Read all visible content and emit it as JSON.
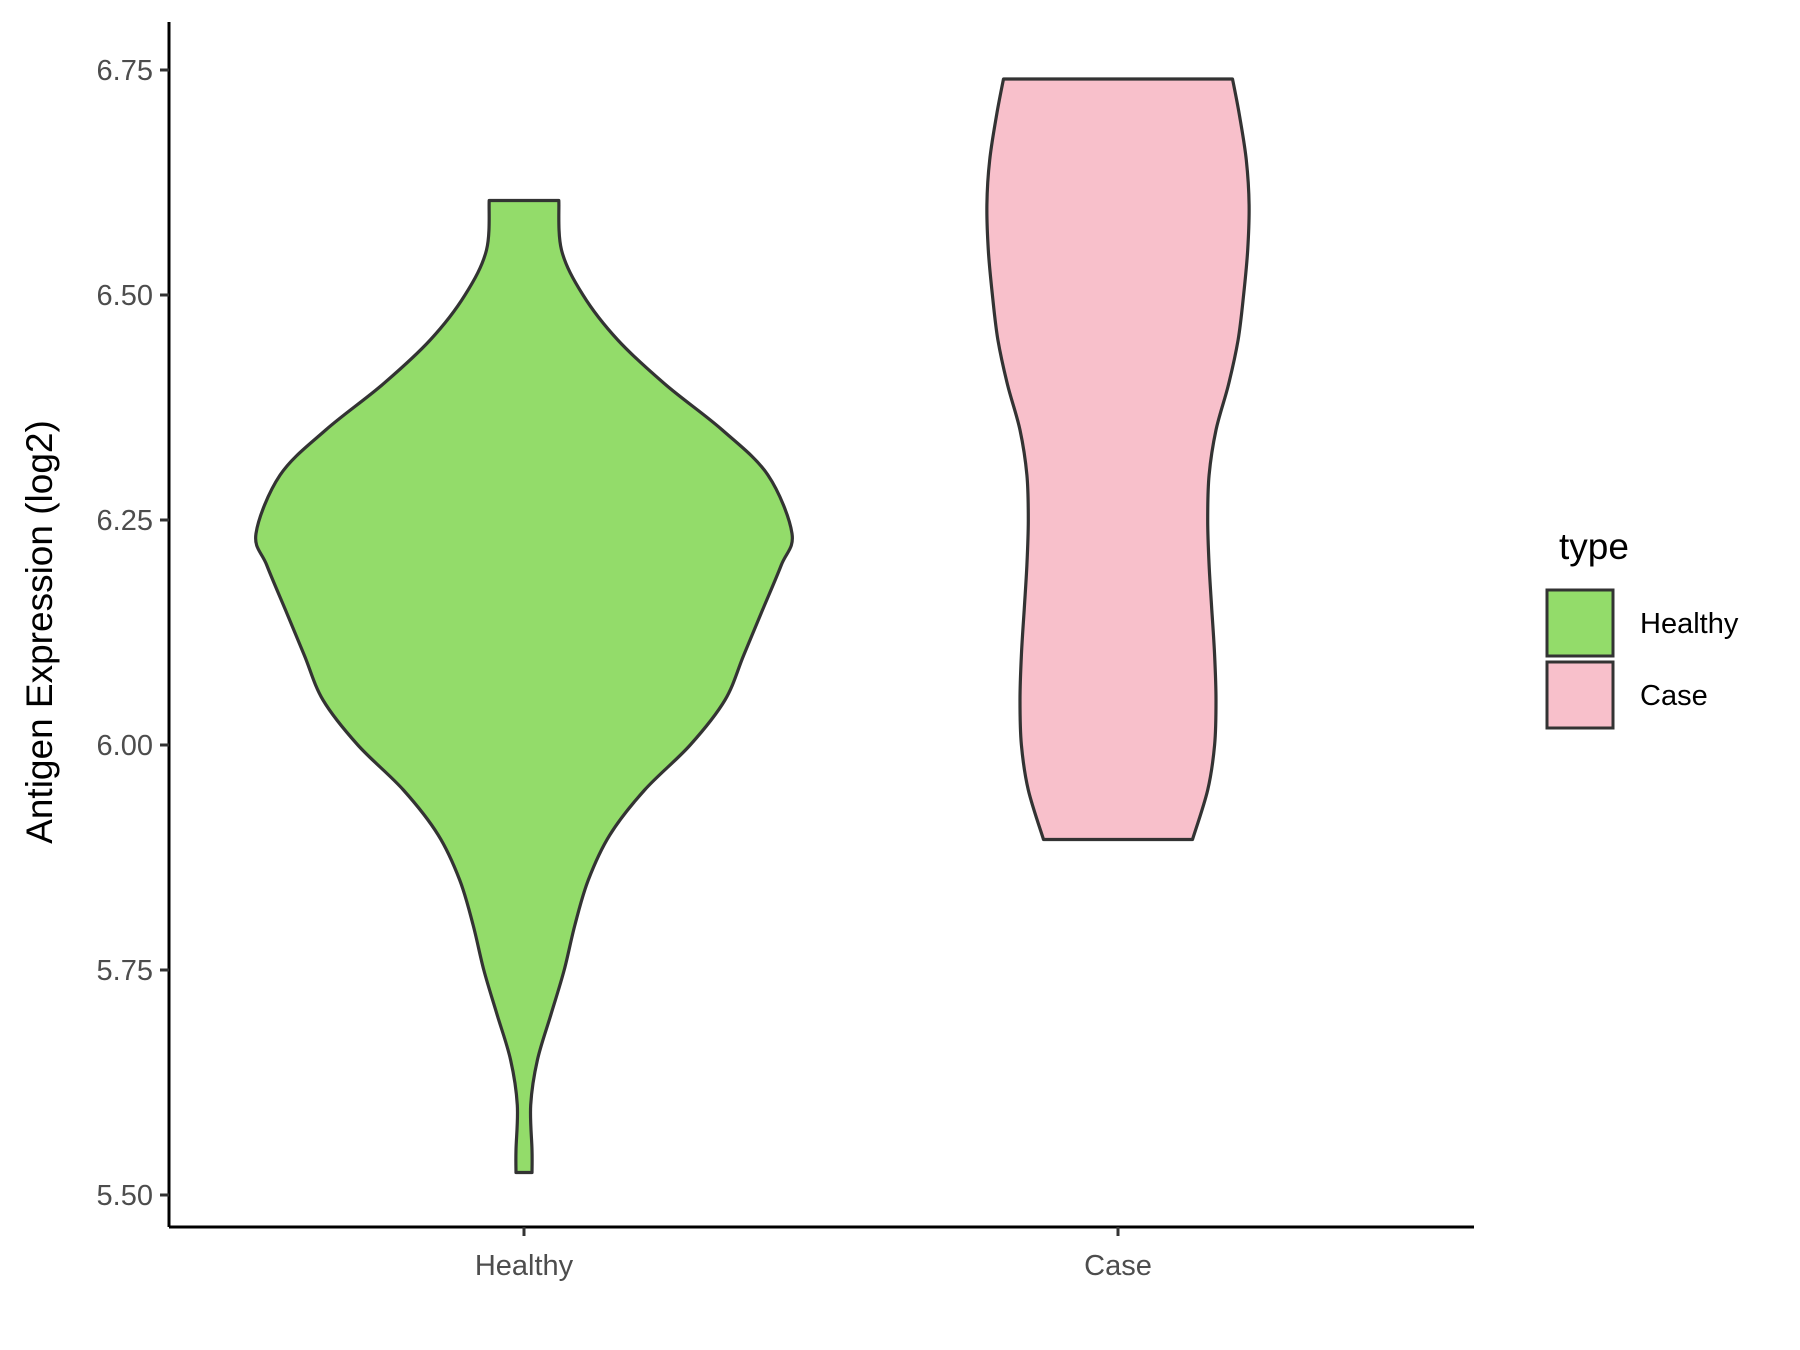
{
  "chart_data": {
    "type": "violin",
    "title": "",
    "xlabel": "",
    "ylabel": "Antigen Expression (log2)",
    "categories": [
      "Healthy",
      "Case"
    ],
    "ylim": [
      5.47,
      6.8
    ],
    "yticks": [
      "5.50",
      "5.75",
      "6.00",
      "6.25",
      "6.50",
      "6.75"
    ],
    "grid": false,
    "legend": {
      "title": "type",
      "position": "right",
      "items": [
        {
          "label": "Healthy",
          "color": "#93dc6a"
        },
        {
          "label": "Case",
          "color": "#f8c0cb"
        }
      ]
    },
    "series": [
      {
        "category": "Healthy",
        "color": "#93dc6a",
        "min": 5.525,
        "max": 6.605,
        "density_profile": [
          [
            5.525,
            0.03
          ],
          [
            5.55,
            0.03
          ],
          [
            5.6,
            0.025
          ],
          [
            5.65,
            0.05
          ],
          [
            5.7,
            0.1
          ],
          [
            5.75,
            0.15
          ],
          [
            5.8,
            0.19
          ],
          [
            5.85,
            0.24
          ],
          [
            5.9,
            0.32
          ],
          [
            5.95,
            0.45
          ],
          [
            6.0,
            0.62
          ],
          [
            6.05,
            0.75
          ],
          [
            6.1,
            0.82
          ],
          [
            6.15,
            0.89
          ],
          [
            6.2,
            0.96
          ],
          [
            6.235,
            1.0
          ],
          [
            6.3,
            0.91
          ],
          [
            6.35,
            0.74
          ],
          [
            6.4,
            0.53
          ],
          [
            6.45,
            0.35
          ],
          [
            6.5,
            0.22
          ],
          [
            6.55,
            0.14
          ],
          [
            6.605,
            0.13
          ]
        ]
      },
      {
        "category": "Case",
        "color": "#f8c0cb",
        "min": 5.895,
        "max": 6.74,
        "density_profile": [
          [
            5.895,
            0.54
          ],
          [
            5.95,
            0.65
          ],
          [
            6.0,
            0.7
          ],
          [
            6.05,
            0.71
          ],
          [
            6.1,
            0.7
          ],
          [
            6.15,
            0.68
          ],
          [
            6.2,
            0.66
          ],
          [
            6.25,
            0.65
          ],
          [
            6.3,
            0.66
          ],
          [
            6.35,
            0.71
          ],
          [
            6.4,
            0.8
          ],
          [
            6.45,
            0.87
          ],
          [
            6.5,
            0.91
          ],
          [
            6.55,
            0.94
          ],
          [
            6.6,
            0.95
          ],
          [
            6.65,
            0.93
          ],
          [
            6.7,
            0.88
          ],
          [
            6.74,
            0.83
          ]
        ]
      }
    ]
  }
}
